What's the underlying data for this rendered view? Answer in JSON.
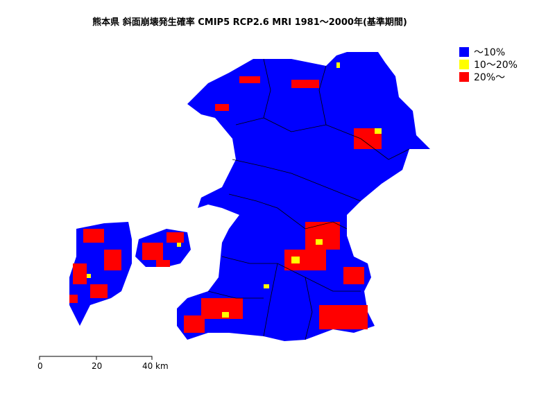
{
  "title": "熊本県 斜面崩壊発生確率 CMIP5 RCP2.6 MRI 1981～2000年(基準期間)",
  "legend": [
    {
      "label": "～10%",
      "color": "#0000ff"
    },
    {
      "label": "10～20%",
      "color": "#ffff00"
    },
    {
      "label": "20%～",
      "color": "#ff0000"
    }
  ],
  "scale_bar": {
    "ticks": [
      "0",
      "20",
      "40"
    ],
    "unit": "km"
  }
}
